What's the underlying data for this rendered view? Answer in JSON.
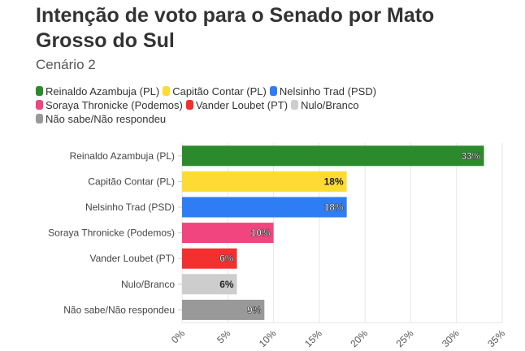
{
  "title": "Intenção de voto para o Senado por Mato Grosso do Sul",
  "subtitle": "Cenário 2",
  "chart_data": {
    "type": "bar",
    "orientation": "horizontal",
    "categories": [
      "Reinaldo Azambuja (PL)",
      "Capitão Contar (PL)",
      "Nelsinho Trad (PSD)",
      "Soraya Thronicke (Podemos)",
      "Vander Loubet (PT)",
      "Nulo/Branco",
      "Não sabe/Não respondeu"
    ],
    "values": [
      33,
      18,
      18,
      10,
      6,
      6,
      9
    ],
    "data_labels": [
      "33%",
      "18%",
      "18%",
      "10%",
      "6%",
      "6%",
      "9%"
    ],
    "colors": [
      "#2b8a2b",
      "#fddb33",
      "#2f7df4",
      "#f0457f",
      "#f2302f",
      "#cdcdcd",
      "#999999"
    ],
    "label_colors": [
      "#ffffff",
      "#222222",
      "#ffffff",
      "#ffffff",
      "#ffffff",
      "#222222",
      "#ffffff"
    ],
    "xlim": [
      0,
      35
    ],
    "xticks": [
      "0%",
      "5%",
      "10%",
      "15%",
      "20%",
      "25%",
      "30%",
      "35%"
    ],
    "grid": true,
    "legend_position": "top"
  }
}
